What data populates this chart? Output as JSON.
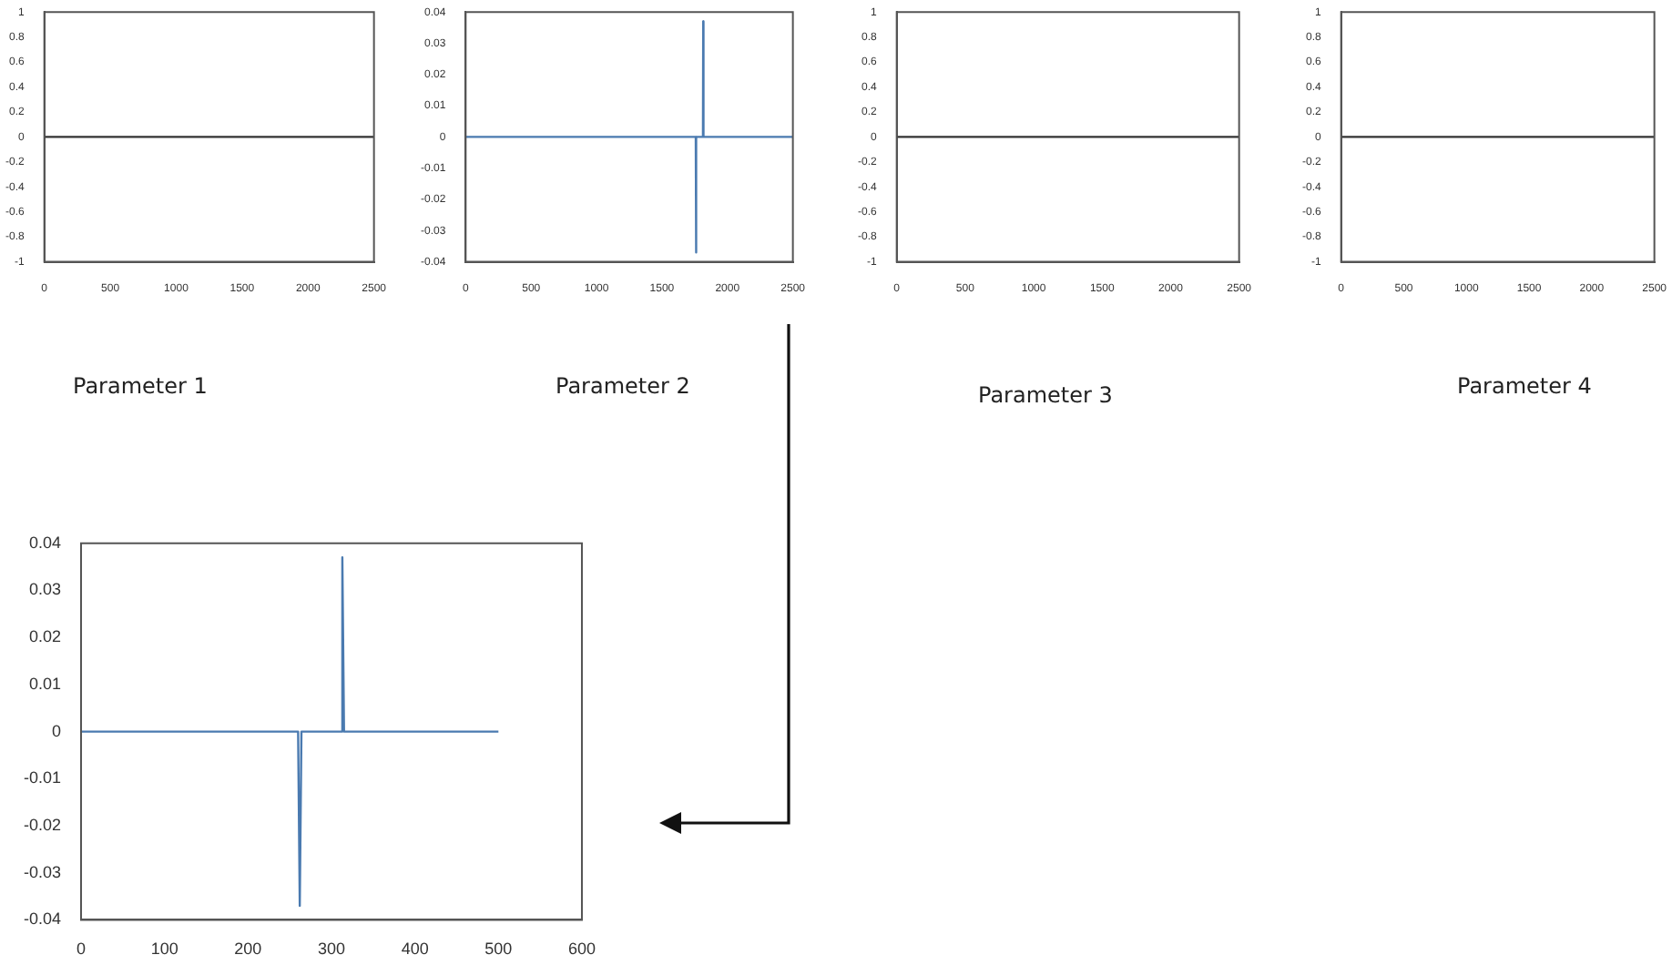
{
  "chart_data": [
    {
      "type": "line",
      "x": [
        0,
        2500
      ],
      "series": [
        {
          "color": "#333333",
          "values": [
            0,
            0
          ]
        }
      ],
      "xlim": [
        0,
        2500
      ],
      "ylim": [
        -1,
        1
      ],
      "xticks": [
        0,
        500,
        1000,
        1500,
        2000,
        2500
      ],
      "yticks": [
        -1,
        -0.8,
        -0.6,
        -0.4,
        -0.2,
        0,
        0.2,
        0.4,
        0.6,
        0.8,
        1
      ],
      "grid": false,
      "annotations": [
        "Parameter 1"
      ]
    },
    {
      "type": "line",
      "x": [
        0,
        1758,
        1760,
        1762,
        1813,
        1815,
        1817,
        2500
      ],
      "series": [
        {
          "color": "#4a7ab0",
          "values": [
            0,
            0,
            -0.037,
            0,
            0,
            0.037,
            0,
            0
          ]
        }
      ],
      "xlim": [
        0,
        2500
      ],
      "ylim": [
        -0.04,
        0.04
      ],
      "xticks": [
        0,
        500,
        1000,
        1500,
        2000,
        2500
      ],
      "yticks": [
        -0.04,
        -0.03,
        -0.02,
        -0.01,
        0,
        0.01,
        0.02,
        0.03,
        0.04
      ],
      "grid": false,
      "annotations": [
        "Parameter 2"
      ]
    },
    {
      "type": "line",
      "x": [
        0,
        2500
      ],
      "series": [
        {
          "color": "#333333",
          "values": [
            0,
            0
          ]
        }
      ],
      "xlim": [
        0,
        2500
      ],
      "ylim": [
        -1,
        1
      ],
      "xticks": [
        0,
        500,
        1000,
        1500,
        2000,
        2500
      ],
      "yticks": [
        -1,
        -0.8,
        -0.6,
        -0.4,
        -0.2,
        0,
        0.2,
        0.4,
        0.6,
        0.8,
        1
      ],
      "grid": false,
      "annotations": [
        "Parameter 3"
      ]
    },
    {
      "type": "line",
      "x": [
        0,
        2500
      ],
      "series": [
        {
          "color": "#333333",
          "values": [
            0,
            0
          ]
        }
      ],
      "xlim": [
        0,
        2500
      ],
      "ylim": [
        -1,
        1
      ],
      "xticks": [
        0,
        500,
        1000,
        1500,
        2000,
        2500
      ],
      "yticks": [
        -1,
        -0.8,
        -0.6,
        -0.4,
        -0.2,
        0,
        0.2,
        0.4,
        0.6,
        0.8,
        1
      ],
      "grid": false,
      "annotations": [
        "Parameter 4"
      ]
    },
    {
      "type": "line",
      "x": [
        0,
        260,
        262,
        264,
        311,
        313,
        315,
        500
      ],
      "series": [
        {
          "color": "#4a7ab0",
          "values": [
            0,
            0,
            -0.037,
            0,
            0,
            0.037,
            0,
            0
          ]
        }
      ],
      "xlim": [
        0,
        600
      ],
      "ylim": [
        -0.04,
        0.04
      ],
      "xticks": [
        0,
        100,
        200,
        300,
        400,
        500,
        600
      ],
      "yticks": [
        -0.04,
        -0.03,
        -0.02,
        -0.01,
        0,
        0.01,
        0.02,
        0.03,
        0.04
      ],
      "grid": false
    }
  ]
}
